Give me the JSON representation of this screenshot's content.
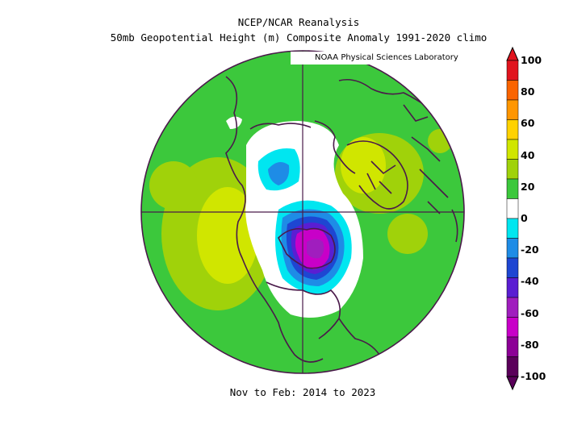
{
  "title_line1": "NCEP/NCAR Reanalysis",
  "title_line2": "50mb Geopotential Height (m) Composite Anomaly 1991-2020 climo",
  "credit": "NOAA Physical Sciences Laboratory",
  "footer": "Nov to Feb: 2014 to 2023",
  "colorbar": {
    "labels": [
      "100",
      "80",
      "60",
      "40",
      "20",
      "0",
      "-20",
      "-40",
      "-60",
      "-80",
      "-100"
    ],
    "colors": [
      "#e1141e",
      "#fa6400",
      "#ff9600",
      "#ffd200",
      "#d0e600",
      "#a0d20a",
      "#3cc83c",
      "#ffffff",
      "#00e6f0",
      "#1e8ce6",
      "#1e46d2",
      "#5a1ed2",
      "#a01ebe",
      "#c800c8",
      "#8c0096",
      "#5a005a"
    ],
    "units": "m"
  },
  "map": {
    "projection": "North Polar Stereographic",
    "background_color": "#3cc83c",
    "features": [
      "positive anomaly over North Pacific",
      "positive anomaly over Europe",
      "negative anomaly centered over Hudson Bay / Canada"
    ]
  }
}
